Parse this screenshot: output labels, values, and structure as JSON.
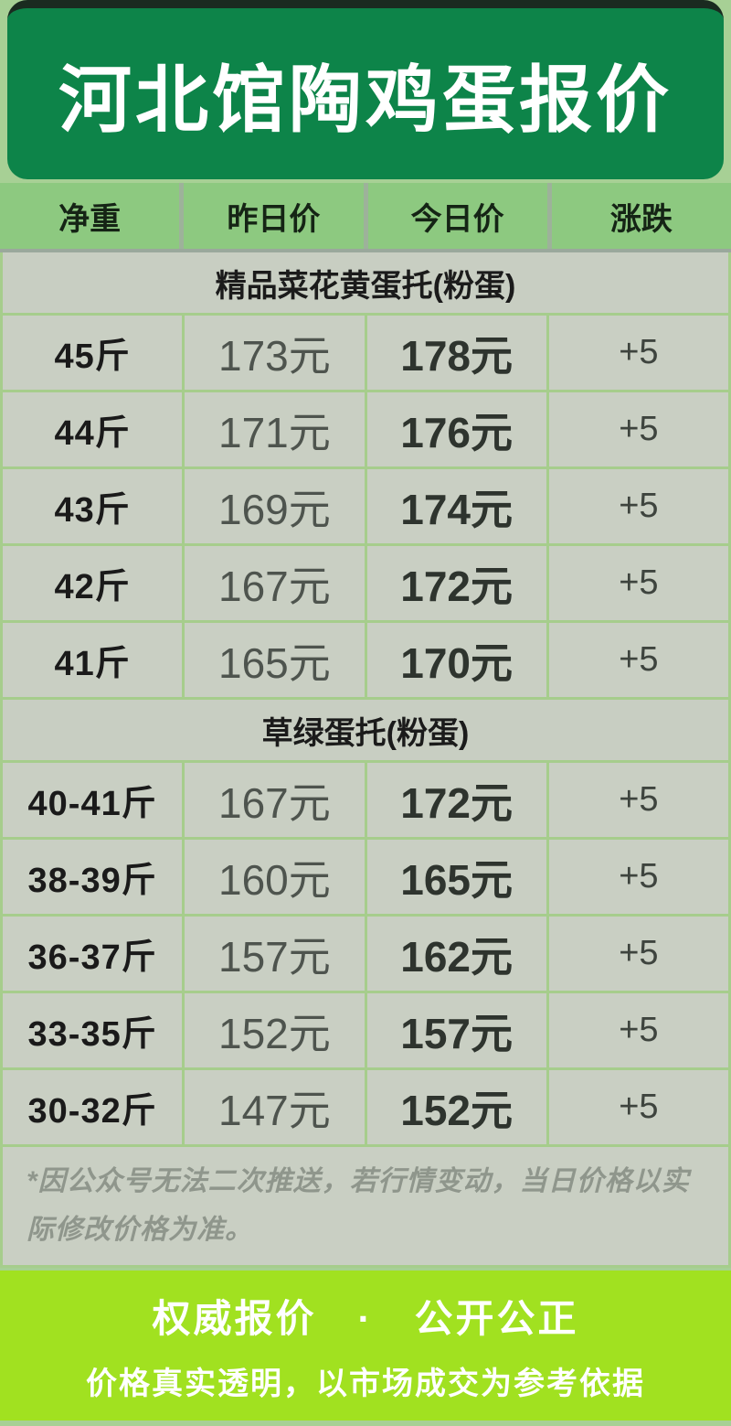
{
  "colors": {
    "page_bg": "#a7d095",
    "header_card_bg": "#0d8449",
    "header_card_top_edge": "#1a2b20",
    "column_header_cell_bg": "#8dc980",
    "column_gap_grey": "#9db29a",
    "grid_line_green": "#a6cd8c",
    "cell_bg_grey": "#c9cfc3",
    "banner_bg": "#a1e120",
    "title_text": "#ffffff",
    "footnote_text": "#8f968c"
  },
  "header": {
    "title": "河北馆陶鸡蛋报价"
  },
  "columns": [
    "净重",
    "昨日价",
    "今日价",
    "涨跌"
  ],
  "sections": [
    {
      "title": "精品菜花黄蛋托(粉蛋)",
      "rows": [
        [
          "45斤",
          "173元",
          "178元",
          "+5"
        ],
        [
          "44斤",
          "171元",
          "176元",
          "+5"
        ],
        [
          "43斤",
          "169元",
          "174元",
          "+5"
        ],
        [
          "42斤",
          "167元",
          "172元",
          "+5"
        ],
        [
          "41斤",
          "165元",
          "170元",
          "+5"
        ]
      ]
    },
    {
      "title": "草绿蛋托(粉蛋)",
      "rows": [
        [
          "40-41斤",
          "167元",
          "172元",
          "+5"
        ],
        [
          "38-39斤",
          "160元",
          "165元",
          "+5"
        ],
        [
          "36-37斤",
          "157元",
          "162元",
          "+5"
        ],
        [
          "33-35斤",
          "152元",
          "157元",
          "+5"
        ],
        [
          "30-32斤",
          "147元",
          "152元",
          "+5"
        ]
      ]
    }
  ],
  "footnote": "*因公众号无法二次推送，若行情变动，当日价格以实际修改价格为准。",
  "banner": {
    "line1": "权威报价　·　公开公正",
    "line2": "价格真实透明，以市场成交为参考依据"
  }
}
